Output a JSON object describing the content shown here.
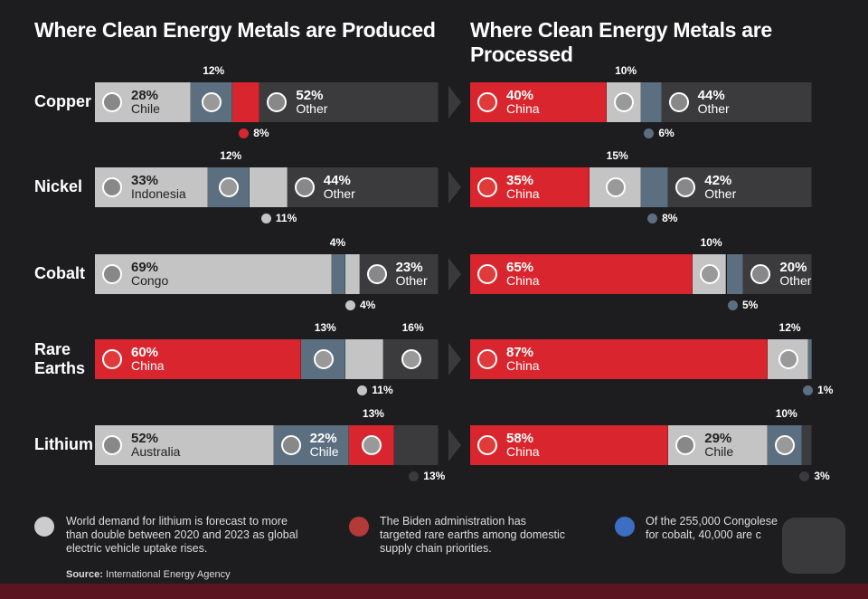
{
  "chart_data": {
    "type": "bar",
    "stacked": true,
    "orientation": "horizontal",
    "xlim": [
      0,
      100
    ],
    "categories": [
      "Copper",
      "Nickel",
      "Cobalt",
      "Rare Earths",
      "Lithium"
    ],
    "panels": [
      {
        "title": "Where Clean Energy Metals are Produced",
        "rows": [
          [
            {
              "value": 28,
              "value_label": "28%",
              "name": "Chile",
              "color": "#c4c4c4"
            },
            {
              "value": 12,
              "value_label": "12%",
              "color": "#5b6f80"
            },
            {
              "value": 8,
              "value_label": "8%",
              "color": "#d9262e"
            },
            {
              "value": 52,
              "value_label": "52%",
              "name": "Other",
              "color": "#3b3b3d"
            }
          ],
          [
            {
              "value": 33,
              "value_label": "33%",
              "name": "Indonesia",
              "color": "#c4c4c4"
            },
            {
              "value": 12,
              "value_label": "12%",
              "color": "#5b6f80"
            },
            {
              "value": 11,
              "value_label": "11%",
              "color": "#c4c4c4"
            },
            {
              "value": 44,
              "value_label": "44%",
              "name": "Other",
              "color": "#3b3b3d"
            }
          ],
          [
            {
              "value": 69,
              "value_label": "69%",
              "name": "Congo",
              "color": "#c4c4c4"
            },
            {
              "value": 4,
              "value_label": "4%",
              "color": "#5b6f80"
            },
            {
              "value": 4,
              "value_label": "4%",
              "color": "#c4c4c4"
            },
            {
              "value": 23,
              "value_label": "23%",
              "name": "Other",
              "color": "#3b3b3d"
            }
          ],
          [
            {
              "value": 60,
              "value_label": "60%",
              "name": "China",
              "color": "#d9262e"
            },
            {
              "value": 13,
              "value_label": "13%",
              "color": "#5b6f80"
            },
            {
              "value": 11,
              "value_label": "11%",
              "color": "#c4c4c4"
            },
            {
              "value": 16,
              "value_label": "16%",
              "color": "#3b3b3d"
            }
          ],
          [
            {
              "value": 52,
              "value_label": "52%",
              "name": "Australia",
              "color": "#c4c4c4"
            },
            {
              "value": 22,
              "value_label": "22%",
              "name": "Chile",
              "color": "#5b6f80"
            },
            {
              "value": 13,
              "value_label": "13%",
              "color": "#d9262e"
            },
            {
              "value": 13,
              "value_label": "13%",
              "color": "#3b3b3d"
            }
          ]
        ]
      },
      {
        "title": "Where Clean Energy Metals are Processed",
        "rows": [
          [
            {
              "value": 40,
              "value_label": "40%",
              "name": "China",
              "color": "#d9262e"
            },
            {
              "value": 10,
              "value_label": "10%",
              "color": "#c4c4c4"
            },
            {
              "value": 6,
              "value_label": "6%",
              "color": "#5b6f80"
            },
            {
              "value": 44,
              "value_label": "44%",
              "name": "Other",
              "color": "#3b3b3d"
            }
          ],
          [
            {
              "value": 35,
              "value_label": "35%",
              "name": "China",
              "color": "#d9262e"
            },
            {
              "value": 15,
              "value_label": "15%",
              "color": "#c4c4c4"
            },
            {
              "value": 8,
              "value_label": "8%",
              "color": "#5b6f80"
            },
            {
              "value": 42,
              "value_label": "42%",
              "name": "Other",
              "color": "#3b3b3d"
            }
          ],
          [
            {
              "value": 65,
              "value_label": "65%",
              "name": "China",
              "color": "#d9262e"
            },
            {
              "value": 10,
              "value_label": "10%",
              "color": "#c4c4c4"
            },
            {
              "value": 5,
              "value_label": "5%",
              "color": "#5b6f80"
            },
            {
              "value": 20,
              "value_label": "20%",
              "name": "Other",
              "color": "#3b3b3d"
            }
          ],
          [
            {
              "value": 87,
              "value_label": "87%",
              "name": "China",
              "color": "#d9262e"
            },
            {
              "value": 12,
              "value_label": "12%",
              "color": "#c4c4c4"
            },
            {
              "value": 1,
              "value_label": "1%",
              "color": "#5b6f80"
            }
          ],
          [
            {
              "value": 58,
              "value_label": "58%",
              "name": "China",
              "color": "#d9262e"
            },
            {
              "value": 29,
              "value_label": "29%",
              "name": "Chile",
              "color": "#c4c4c4"
            },
            {
              "value": 10,
              "value_label": "10%",
              "color": "#5b6f80"
            },
            {
              "value": 3,
              "value_label": "3%",
              "color": "#3b3b3d"
            }
          ]
        ]
      }
    ]
  },
  "notes": [
    "World demand for lithium is forecast to more than double between 2020 and 2023 as global electric vehicle uptake rises.",
    "The Biden administration has targeted rare earths among domestic supply chain priorities.",
    "Of the 255,000 Congolese for cobalt, 40,000 are c"
  ],
  "source": {
    "label": "Source:",
    "text": "International Energy Agency"
  }
}
